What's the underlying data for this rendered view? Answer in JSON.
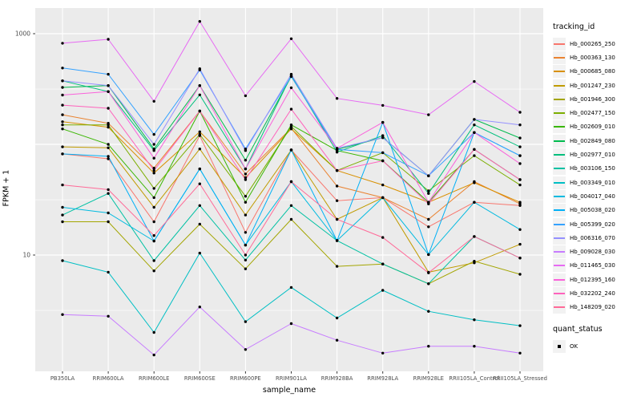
{
  "figure": {
    "ylabel": "FPKM + 1",
    "xlabel": "sample_name",
    "panel_bg": "#EBEBEB",
    "grid_color": "#FFFFFF",
    "tick_text_color": "#4D4D4D",
    "point_color": "#000000",
    "legend_key_bg": "#F2F2F2"
  },
  "chart_data": {
    "type": "line",
    "title": "",
    "xlabel": "sample_name",
    "ylabel": "FPKM + 1",
    "x_type": "categorical",
    "y_scale": "log10",
    "ylim": [
      0.9,
      1700
    ],
    "grid": "on",
    "legend_position": "right",
    "legend_title": "tracking_id",
    "y_axis_ticks": [
      {
        "label": "1000",
        "value": 1000
      },
      {
        "label": "10",
        "value": 10
      }
    ],
    "y_gridlines_major": [
      10,
      100,
      1000
    ],
    "y_gridlines_minor": [
      3.16,
      31.6,
      316
    ],
    "point_marker": "black dot (quant_status = OK)",
    "categories": [
      "PB350LA",
      "RRIM600LA",
      "RRIM600LE",
      "RRIM600SE",
      "RRIM600PE",
      "RRIM901LA",
      "RRIM928BA",
      "RRIM928LA",
      "RRIM928LE",
      "RRII105LA_Control",
      "RRII105LA_Stressed"
    ],
    "series": [
      {
        "name": "Hb_000265_250",
        "color": "#F8766D",
        "values": [
          82,
          74,
          20,
          120,
          16,
          89,
          31,
          33,
          18,
          30,
          28
        ]
      },
      {
        "name": "Hb_000363_130",
        "color": "#EA8331",
        "values": [
          185,
          155,
          61,
          200,
          54,
          140,
          42,
          33,
          21,
          46,
          29
        ]
      },
      {
        "name": "Hb_000685_080",
        "color": "#D89000",
        "values": [
          160,
          143,
          55,
          130,
          50,
          138,
          58,
          43,
          30,
          45,
          30
        ]
      },
      {
        "name": "Hb_001247_230",
        "color": "#C09B00",
        "values": [
          95,
          93,
          27,
          91,
          23,
          89,
          21,
          33,
          7,
          8.5,
          12.5
        ]
      },
      {
        "name": "Hb_001946_300",
        "color": "#A3A500",
        "values": [
          20,
          20,
          7.2,
          19,
          7.5,
          21,
          7.9,
          8.3,
          5.5,
          8.8,
          6.7
        ]
      },
      {
        "name": "Hb_002477_150",
        "color": "#7CAE00",
        "values": [
          150,
          150,
          40,
          123,
          34,
          145,
          58,
          84,
          38,
          79,
          43
        ]
      },
      {
        "name": "Hb_002609_010",
        "color": "#39B600",
        "values": [
          138,
          100,
          33,
          200,
          30,
          150,
          88,
          71,
          30,
          90,
          48
        ]
      },
      {
        "name": "Hb_002849_080",
        "color": "#00BB4E",
        "values": [
          327,
          340,
          91,
          340,
          72,
          410,
          90,
          115,
          52,
          168,
          114
        ]
      },
      {
        "name": "Hb_002977_010",
        "color": "#00BF7D",
        "values": [
          375,
          300,
          88,
          280,
          60,
          420,
          85,
          120,
          36,
          150,
          95
        ]
      },
      {
        "name": "Hb_003106_150",
        "color": "#00C1A3",
        "values": [
          23,
          36,
          8.9,
          28,
          9,
          28,
          13.5,
          8.3,
          5.5,
          14.7,
          9.4
        ]
      },
      {
        "name": "Hb_003349_010",
        "color": "#00BFC4",
        "values": [
          8.9,
          7,
          2,
          10.4,
          2.5,
          5.1,
          2.7,
          4.8,
          3.1,
          2.6,
          2.3
        ]
      },
      {
        "name": "Hb_004017_040",
        "color": "#00BAE0",
        "values": [
          27,
          24,
          13.4,
          60,
          12.3,
          46,
          13.5,
          33,
          10.1,
          30,
          17
        ]
      },
      {
        "name": "Hb_005038_020",
        "color": "#00B0F6",
        "values": [
          82,
          78,
          13.4,
          60,
          12.3,
          89,
          13.5,
          158,
          10.1,
          128,
          79
        ]
      },
      {
        "name": "Hb_005399_020",
        "color": "#35A2FF",
        "values": [
          490,
          430,
          123,
          470,
          91,
          410,
          90,
          84,
          52,
          128,
          79
        ]
      },
      {
        "name": "Hb_006316_070",
        "color": "#9590FF",
        "values": [
          375,
          340,
          100,
          482,
          88,
          430,
          92,
          115,
          52,
          168,
          150
        ]
      },
      {
        "name": "Hb_009028_030",
        "color": "#C77CFF",
        "values": [
          2.9,
          2.8,
          1.25,
          3.4,
          1.4,
          2.4,
          1.7,
          1.3,
          1.5,
          1.5,
          1.3
        ]
      },
      {
        "name": "Hb_011465_030",
        "color": "#E76BF3",
        "values": [
          820,
          890,
          245,
          1290,
          275,
          900,
          260,
          225,
          185,
          370,
          195
        ]
      },
      {
        "name": "Hb_012395_160",
        "color": "#FA62DB",
        "values": [
          279,
          300,
          75,
          340,
          60,
          325,
          92,
          158,
          30,
          128,
          67
        ]
      },
      {
        "name": "Hb_032202_240",
        "color": "#FF62BC",
        "values": [
          226,
          212,
          58,
          200,
          48,
          208,
          58,
          71,
          29,
          90,
          48
        ]
      },
      {
        "name": "Hb_148209_020",
        "color": "#FF6A98",
        "values": [
          43,
          39,
          15,
          44,
          10,
          46,
          21,
          14.4,
          6.9,
          14.7,
          9.4
        ]
      }
    ],
    "quant_status": {
      "title": "quant_status",
      "items": [
        "OK"
      ]
    }
  }
}
